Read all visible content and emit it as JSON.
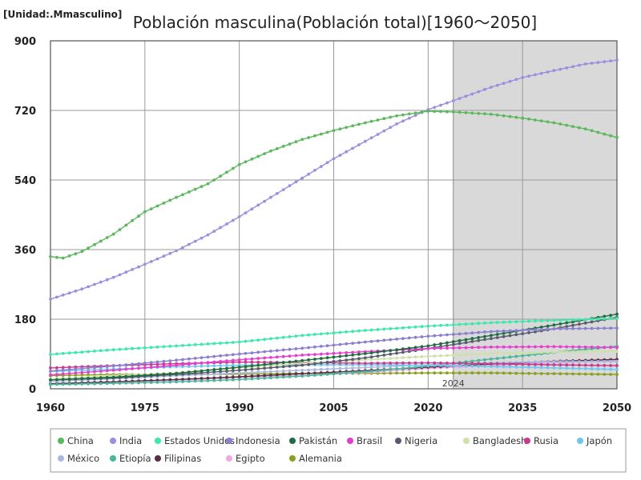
{
  "unit_label": "[Unidad:.Mmasculino]",
  "chart_data": {
    "type": "line",
    "title": "Población masculina(Población total)[1960～2050]",
    "xlabel": "",
    "ylabel": "",
    "xlim": [
      1960,
      2050
    ],
    "ylim": [
      0,
      900
    ],
    "x_ticks": [
      1960,
      1975,
      1990,
      2005,
      2020,
      2035,
      2050
    ],
    "y_ticks": [
      0,
      180,
      360,
      540,
      720,
      900
    ],
    "projection_start": 2024,
    "projection_label": "2024",
    "grid": true,
    "legend_position": "bottom",
    "series": [
      {
        "name": "China",
        "color": "#5cb85c",
        "points": [
          [
            1960,
            342
          ],
          [
            1962,
            338
          ],
          [
            1965,
            355
          ],
          [
            1970,
            400
          ],
          [
            1975,
            458
          ],
          [
            1980,
            495
          ],
          [
            1985,
            530
          ],
          [
            1990,
            580
          ],
          [
            1995,
            615
          ],
          [
            2000,
            645
          ],
          [
            2005,
            668
          ],
          [
            2010,
            688
          ],
          [
            2015,
            706
          ],
          [
            2020,
            718
          ],
          [
            2024,
            716
          ],
          [
            2030,
            710
          ],
          [
            2035,
            700
          ],
          [
            2040,
            688
          ],
          [
            2045,
            672
          ],
          [
            2050,
            650
          ]
        ]
      },
      {
        "name": "India",
        "color": "#9b8fe0",
        "points": [
          [
            1960,
            232
          ],
          [
            1965,
            258
          ],
          [
            1970,
            288
          ],
          [
            1975,
            322
          ],
          [
            1980,
            357
          ],
          [
            1985,
            398
          ],
          [
            1990,
            445
          ],
          [
            1995,
            495
          ],
          [
            2000,
            545
          ],
          [
            2005,
            595
          ],
          [
            2010,
            640
          ],
          [
            2015,
            685
          ],
          [
            2020,
            722
          ],
          [
            2024,
            745
          ],
          [
            2030,
            780
          ],
          [
            2035,
            805
          ],
          [
            2040,
            823
          ],
          [
            2045,
            840
          ],
          [
            2050,
            850
          ]
        ]
      },
      {
        "name": "Estados Unidos",
        "color": "#3ce8ab",
        "points": [
          [
            1960,
            89
          ],
          [
            1970,
            101
          ],
          [
            1980,
            111
          ],
          [
            1990,
            121
          ],
          [
            2000,
            138
          ],
          [
            2010,
            151
          ],
          [
            2020,
            162
          ],
          [
            2030,
            171
          ],
          [
            2040,
            177
          ],
          [
            2050,
            182
          ]
        ]
      },
      {
        "name": "Indonesia",
        "color": "#8a7fd0",
        "points": [
          [
            1960,
            46
          ],
          [
            1970,
            59
          ],
          [
            1980,
            74
          ],
          [
            1990,
            90
          ],
          [
            2000,
            105
          ],
          [
            2010,
            121
          ],
          [
            2020,
            136
          ],
          [
            2030,
            148
          ],
          [
            2040,
            155
          ],
          [
            2050,
            157
          ]
        ]
      },
      {
        "name": "Pakistán",
        "color": "#1f6b42",
        "points": [
          [
            1960,
            23
          ],
          [
            1970,
            30
          ],
          [
            1980,
            40
          ],
          [
            1990,
            56
          ],
          [
            2000,
            73
          ],
          [
            2010,
            91
          ],
          [
            2020,
            111
          ],
          [
            2030,
            138
          ],
          [
            2040,
            165
          ],
          [
            2050,
            193
          ]
        ]
      },
      {
        "name": "Brasil",
        "color": "#e83ccf",
        "points": [
          [
            1960,
            36
          ],
          [
            1970,
            48
          ],
          [
            1980,
            61
          ],
          [
            1990,
            75
          ],
          [
            2000,
            87
          ],
          [
            2010,
            96
          ],
          [
            2020,
            104
          ],
          [
            2030,
            108
          ],
          [
            2040,
            109
          ],
          [
            2050,
            107
          ]
        ]
      },
      {
        "name": "Nigeria",
        "color": "#5a5a6e",
        "points": [
          [
            1960,
            23
          ],
          [
            1970,
            28
          ],
          [
            1980,
            37
          ],
          [
            1990,
            48
          ],
          [
            2000,
            61
          ],
          [
            2010,
            80
          ],
          [
            2020,
            104
          ],
          [
            2030,
            130
          ],
          [
            2040,
            155
          ],
          [
            2050,
            185
          ]
        ]
      },
      {
        "name": "Bangladesh",
        "color": "#cfe0a8",
        "points": [
          [
            1960,
            25
          ],
          [
            1970,
            34
          ],
          [
            1980,
            41
          ],
          [
            1990,
            54
          ],
          [
            2000,
            66
          ],
          [
            2010,
            75
          ],
          [
            2020,
            84
          ],
          [
            2030,
            91
          ],
          [
            2040,
            95
          ],
          [
            2050,
            97
          ]
        ]
      },
      {
        "name": "Rusia",
        "color": "#c93a8f",
        "points": [
          [
            1960,
            54
          ],
          [
            1970,
            60
          ],
          [
            1980,
            65
          ],
          [
            1990,
            69
          ],
          [
            2000,
            68
          ],
          [
            2010,
            66
          ],
          [
            2020,
            67
          ],
          [
            2030,
            65
          ],
          [
            2040,
            62
          ],
          [
            2050,
            60
          ]
        ]
      },
      {
        "name": "Japón",
        "color": "#6ec8ee",
        "points": [
          [
            1960,
            45
          ],
          [
            1970,
            51
          ],
          [
            1980,
            57
          ],
          [
            1990,
            61
          ],
          [
            2000,
            62
          ],
          [
            2010,
            62
          ],
          [
            2020,
            61
          ],
          [
            2030,
            58
          ],
          [
            2040,
            54
          ],
          [
            2050,
            50
          ]
        ]
      },
      {
        "name": "México",
        "color": "#a8b8e0",
        "points": [
          [
            1960,
            19
          ],
          [
            1970,
            26
          ],
          [
            1980,
            34
          ],
          [
            1990,
            41
          ],
          [
            2000,
            48
          ],
          [
            2010,
            55
          ],
          [
            2020,
            62
          ],
          [
            2030,
            67
          ],
          [
            2040,
            70
          ],
          [
            2050,
            71
          ]
        ]
      },
      {
        "name": "Etiopía",
        "color": "#48b89a",
        "points": [
          [
            1960,
            11
          ],
          [
            1970,
            14
          ],
          [
            1980,
            18
          ],
          [
            1990,
            24
          ],
          [
            2000,
            33
          ],
          [
            2010,
            44
          ],
          [
            2020,
            59
          ],
          [
            2030,
            77
          ],
          [
            2040,
            94
          ],
          [
            2050,
            110
          ]
        ]
      },
      {
        "name": "Filipinas",
        "color": "#5b2c48",
        "points": [
          [
            1960,
            13
          ],
          [
            1970,
            18
          ],
          [
            1980,
            24
          ],
          [
            1990,
            31
          ],
          [
            2000,
            39
          ],
          [
            2010,
            47
          ],
          [
            2020,
            56
          ],
          [
            2030,
            64
          ],
          [
            2040,
            71
          ],
          [
            2050,
            76
          ]
        ]
      },
      {
        "name": "Egipto",
        "color": "#f0a8e0",
        "points": [
          [
            1960,
            13
          ],
          [
            1970,
            17
          ],
          [
            1980,
            22
          ],
          [
            1990,
            29
          ],
          [
            2000,
            35
          ],
          [
            2010,
            42
          ],
          [
            2020,
            53
          ],
          [
            2030,
            60
          ],
          [
            2040,
            67
          ],
          [
            2050,
            73
          ]
        ]
      },
      {
        "name": "Alemania",
        "color": "#8aa020",
        "points": [
          [
            1960,
            34
          ],
          [
            1970,
            37
          ],
          [
            1980,
            37
          ],
          [
            1990,
            38
          ],
          [
            2000,
            40
          ],
          [
            2010,
            40
          ],
          [
            2020,
            41
          ],
          [
            2030,
            41
          ],
          [
            2040,
            39
          ],
          [
            2050,
            37
          ]
        ]
      }
    ]
  }
}
